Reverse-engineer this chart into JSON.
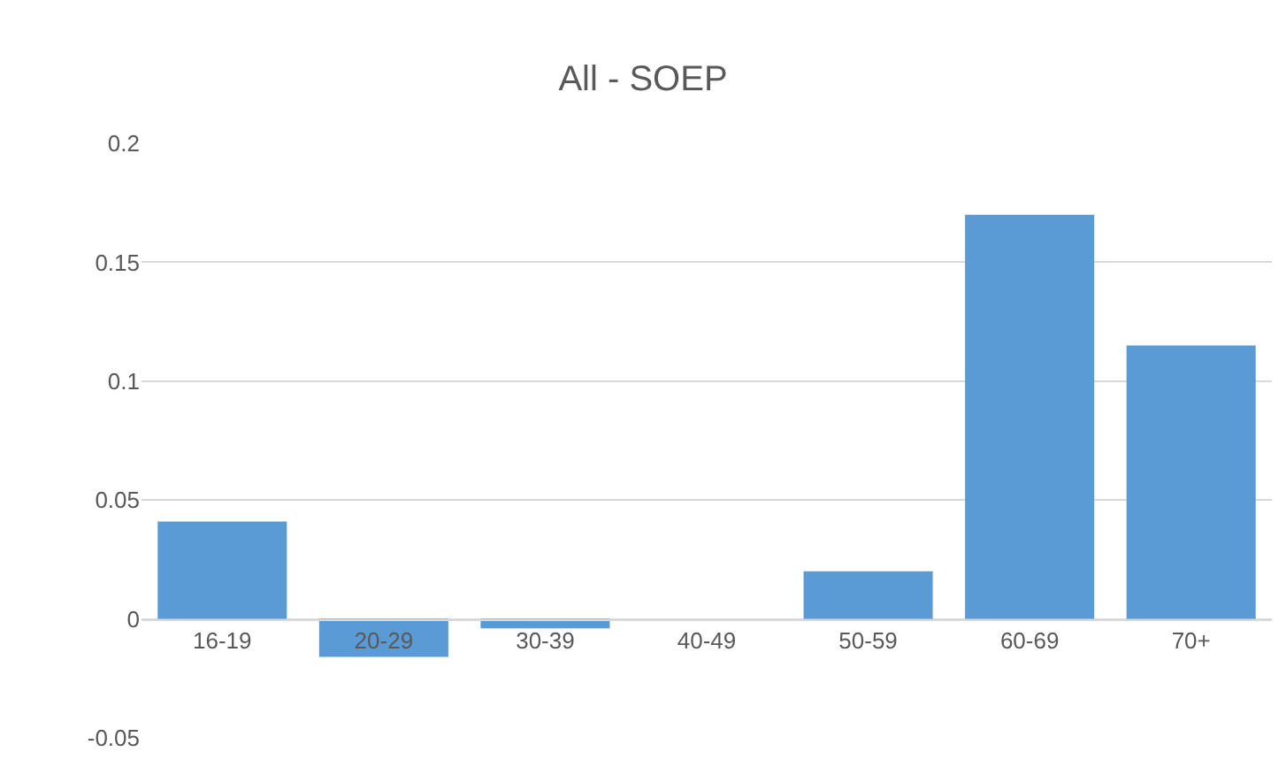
{
  "chart_data": {
    "type": "bar",
    "title": "All - SOEP",
    "categories": [
      "16-19",
      "20-29",
      "30-39",
      "40-49",
      "50-59",
      "60-69",
      "70+"
    ],
    "values": [
      0.041,
      -0.016,
      -0.004,
      0,
      0.02,
      0.17,
      0.115
    ],
    "color": "#5b9bd5",
    "ylim": [
      -0.05,
      0.2
    ],
    "yticks": [
      -0.05,
      0,
      0.05,
      0.1,
      0.15,
      0.2
    ],
    "grid": "y"
  }
}
